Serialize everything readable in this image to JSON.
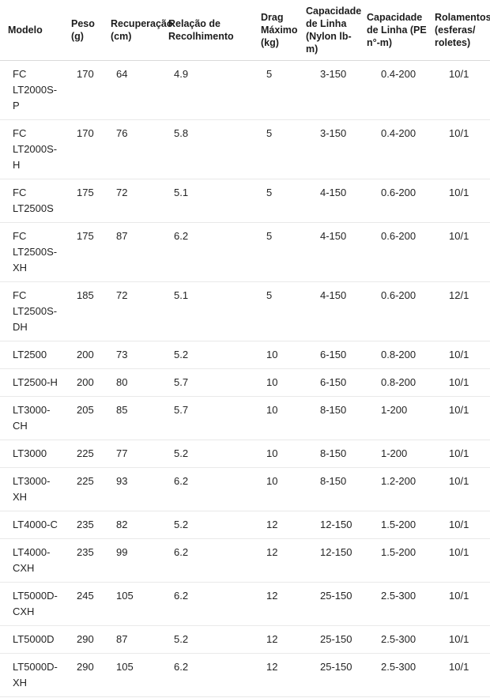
{
  "table": {
    "columns": [
      {
        "label": "Modelo"
      },
      {
        "label": "Peso (g)"
      },
      {
        "label": "Recuperação (cm)"
      },
      {
        "label": "Relação de Recolhimento"
      },
      {
        "label": "Drag Máximo (kg)"
      },
      {
        "label": "Capacidade de Linha (Nylon lb-m)"
      },
      {
        "label": "Capacidade de Linha (PE n°-m)"
      },
      {
        "label": "Rolamentos (esferas/​roletes)"
      }
    ],
    "rows": [
      [
        "FC LT2000S-P",
        "170",
        "64",
        "4.9",
        "5",
        "3-150",
        "0.4-200",
        "10/1"
      ],
      [
        "FC LT2000S-H",
        "170",
        "76",
        "5.8",
        "5",
        "3-150",
        "0.4-200",
        "10/1"
      ],
      [
        "FC LT2500S",
        "175",
        "72",
        "5.1",
        "5",
        "4-150",
        "0.6-200",
        "10/1"
      ],
      [
        "FC LT2500S-XH",
        "175",
        "87",
        "6.2",
        "5",
        "4-150",
        "0.6-200",
        "10/1"
      ],
      [
        "FC LT2500S-DH",
        "185",
        "72",
        "5.1",
        "5",
        "4-150",
        "0.6-200",
        "12/1"
      ],
      [
        "LT2500",
        "200",
        "73",
        "5.2",
        "10",
        "6-150",
        "0.8-200",
        "10/1"
      ],
      [
        "LT2500-H",
        "200",
        "80",
        "5.7",
        "10",
        "6-150",
        "0.8-200",
        "10/1"
      ],
      [
        "LT3000-CH",
        "205",
        "85",
        "5.7",
        "10",
        "8-150",
        "1-200",
        "10/1"
      ],
      [
        "LT3000",
        "225",
        "77",
        "5.2",
        "10",
        "8-150",
        "1-200",
        "10/1"
      ],
      [
        "LT3000-XH",
        "225",
        "93",
        "6.2",
        "10",
        "8-150",
        "1.2-200",
        "10/1"
      ],
      [
        "LT4000-C",
        "235",
        "82",
        "5.2",
        "12",
        "12-150",
        "1.5-200",
        "10/1"
      ],
      [
        "LT4000-CXH",
        "235",
        "99",
        "6.2",
        "12",
        "12-150",
        "1.5-200",
        "10/1"
      ],
      [
        "LT5000D-CXH",
        "245",
        "105",
        "6.2",
        "12",
        "25-150",
        "2.5-300",
        "10/1"
      ],
      [
        "LT5000D",
        "290",
        "87",
        "5.2",
        "12",
        "25-150",
        "2.5-300",
        "10/1"
      ],
      [
        "LT5000D-XH",
        "290",
        "105",
        "6.2",
        "12",
        "25-150",
        "2.5-300",
        "10/1"
      ]
    ],
    "colors": {
      "header_border": "#d9d9d9",
      "row_border": "#e9e9e9",
      "header_text": "#1c1c1c",
      "body_text": "#242424",
      "background": "#ffffff"
    }
  }
}
